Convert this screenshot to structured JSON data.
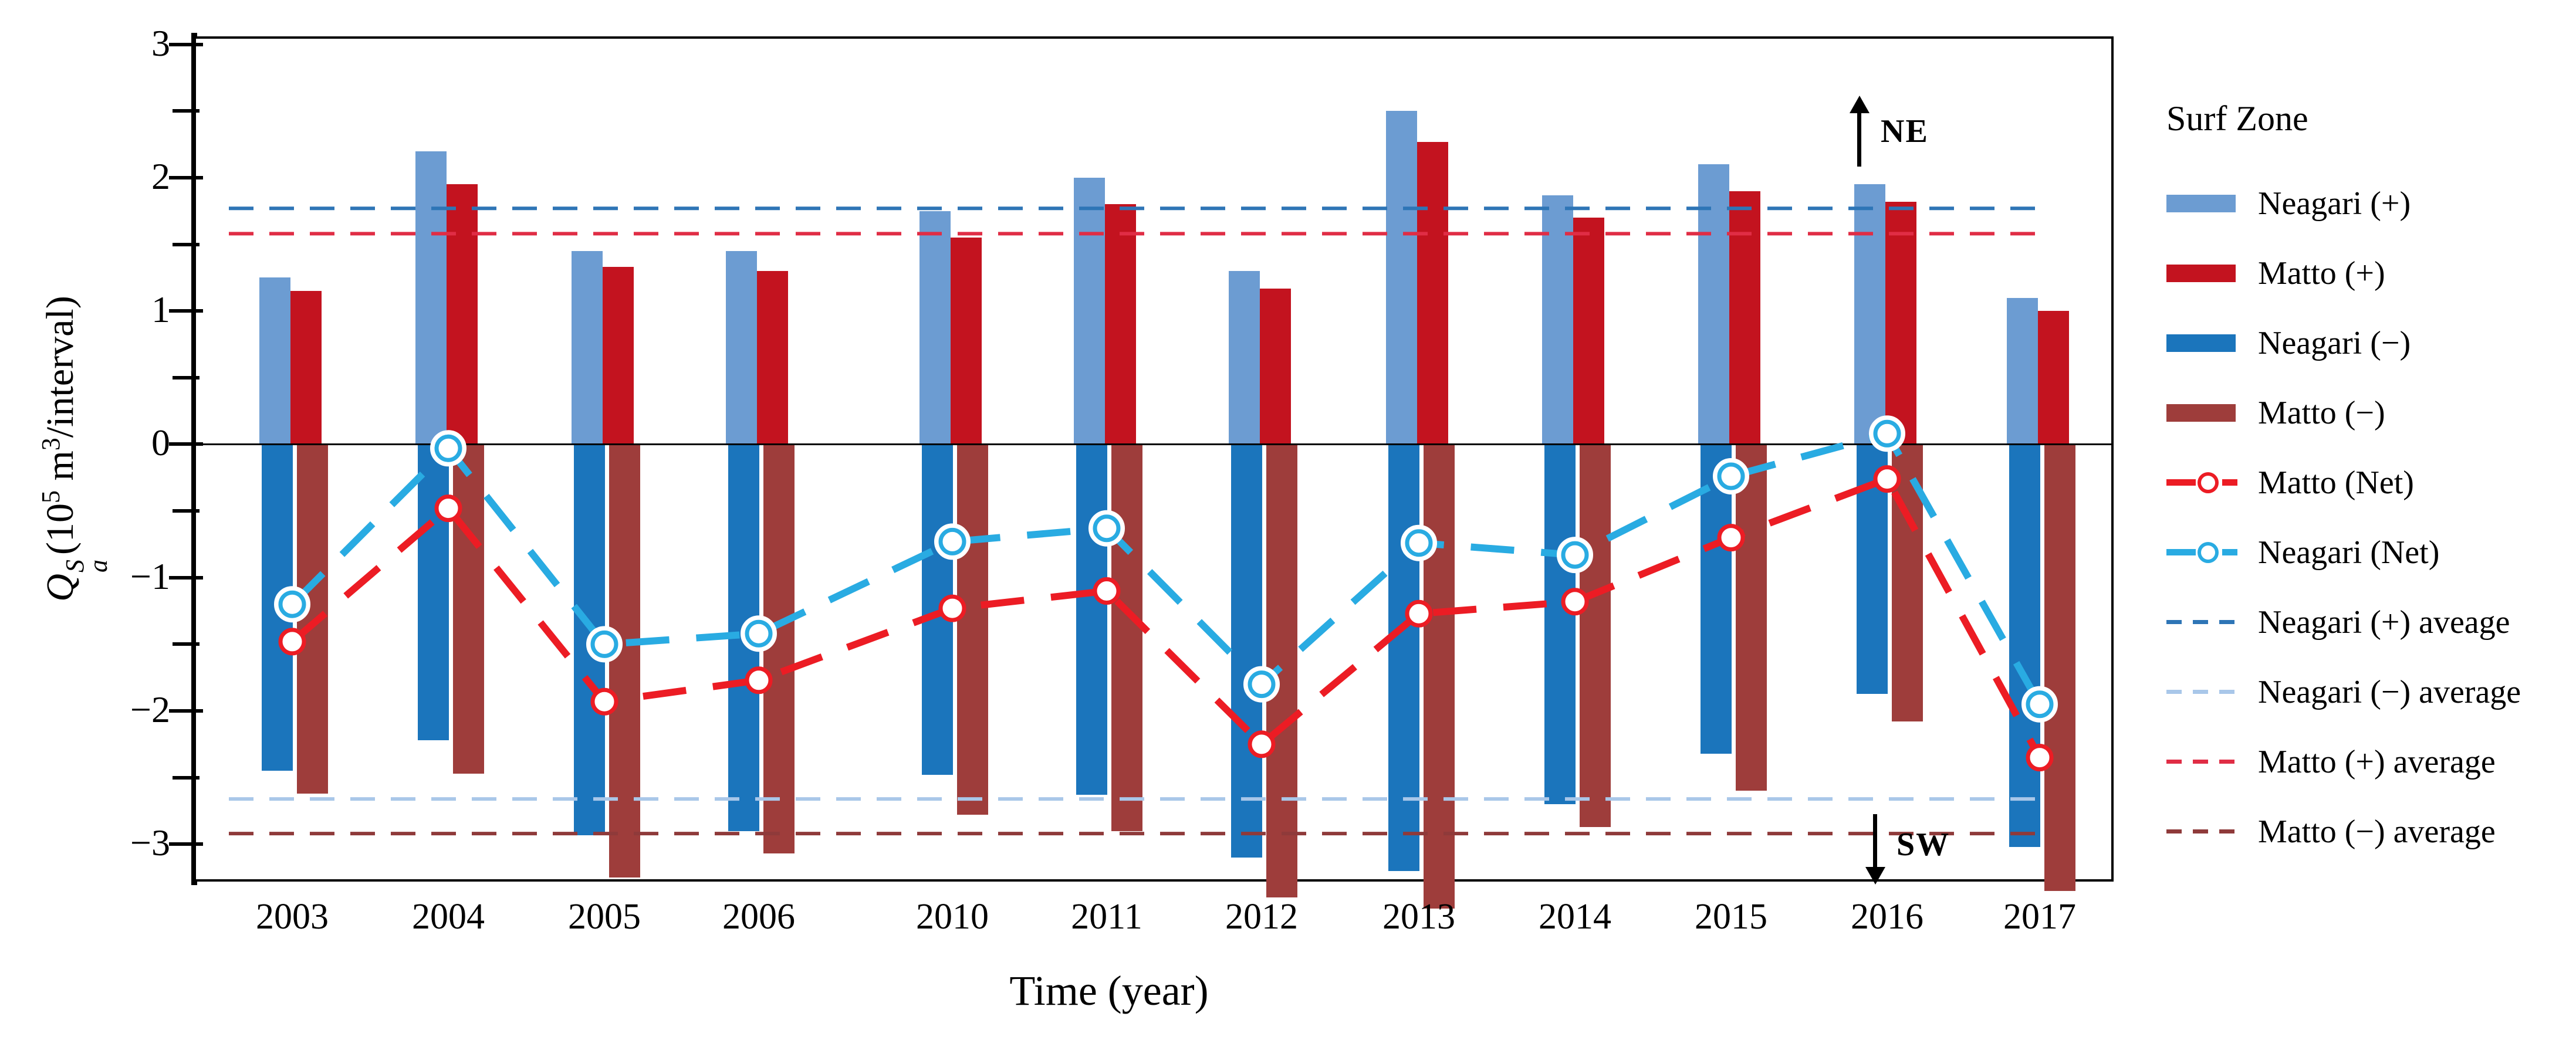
{
  "x_axis": {
    "title": "Time (year)"
  },
  "y_axis": {
    "title_q": "Q",
    "title_sup": "S",
    "title_sub": "a",
    "title_unit_open": "(10",
    "title_unit_exp1": "5",
    "title_unit_m": " m",
    "title_unit_exp2": "3",
    "title_unit_close": "/interval)",
    "tick_labels": [
      "3",
      "2",
      "1",
      "0",
      "−1",
      "−2",
      "−3"
    ],
    "tick_values": [
      3,
      2,
      1,
      0,
      -1,
      -2,
      -3
    ]
  },
  "annotations": {
    "up": "NE",
    "down": "SW"
  },
  "colors": {
    "neagari_plus": "#6C9CD2",
    "matto_plus": "#C3131F",
    "neagari_minus": "#1B75BC",
    "matto_minus": "#9E3D3B",
    "matto_net": "#EC1C24",
    "neagari_net": "#29ABE2",
    "neagari_plus_avg": "#2E75B6",
    "neagari_minus_avg": "#A9C7E9",
    "matto_plus_avg": "#E02D45",
    "matto_minus_avg": "#8F3A3A",
    "axis": "#000000"
  },
  "legend": {
    "title": "Surf Zone",
    "items": [
      {
        "label": "Neagari (+)",
        "swatch": "bar",
        "color": "neagari_plus"
      },
      {
        "label": "Matto (+)",
        "swatch": "bar",
        "color": "matto_plus"
      },
      {
        "label": "Neagari (−)",
        "swatch": "bar",
        "color": "neagari_minus"
      },
      {
        "label": "Matto (−)",
        "swatch": "bar",
        "color": "matto_minus"
      },
      {
        "label": "Matto (Net)",
        "swatch": "net",
        "color": "matto_net"
      },
      {
        "label": "Neagari (Net)",
        "swatch": "net",
        "color": "neagari_net"
      },
      {
        "label": "Neagari (+) aveage",
        "swatch": "dash",
        "color": "neagari_plus_avg"
      },
      {
        "label": "Neagari (−) average",
        "swatch": "dash",
        "color": "neagari_minus_avg"
      },
      {
        "label": "Matto  (+) average",
        "swatch": "dash",
        "color": "matto_plus_avg"
      },
      {
        "label": "Matto  (−) average",
        "swatch": "dash",
        "color": "matto_minus_avg"
      }
    ]
  },
  "chart_data": {
    "type": "bar",
    "title": "",
    "xlabel": "Time (year)",
    "ylabel": "Qa^S (10^5 m^3/interval)",
    "ylim": [
      -3.28,
      3.06
    ],
    "grid": false,
    "legend_position": "right",
    "categories": [
      "2003",
      "2004",
      "2005",
      "2006",
      "2010",
      "2011",
      "2012",
      "2013",
      "2014",
      "2015",
      "2016",
      "2017"
    ],
    "series": [
      {
        "name": "Neagari (+)",
        "plot": "bar",
        "color_key": "neagari_plus",
        "values": [
          1.25,
          2.2,
          1.45,
          1.45,
          1.75,
          2.0,
          1.3,
          2.5,
          1.87,
          2.1,
          1.95,
          1.1
        ]
      },
      {
        "name": "Matto (+)",
        "plot": "bar",
        "color_key": "matto_plus",
        "values": [
          1.15,
          1.95,
          1.33,
          1.3,
          1.55,
          1.8,
          1.17,
          2.27,
          1.7,
          1.9,
          1.82,
          1.0
        ]
      },
      {
        "name": "Neagari (−)",
        "plot": "bar",
        "color_key": "neagari_minus",
        "values": [
          -2.45,
          -2.22,
          -2.93,
          -2.9,
          -2.48,
          -2.63,
          -3.1,
          -3.2,
          -2.7,
          -2.32,
          -1.87,
          -3.02
        ]
      },
      {
        "name": "Matto (−)",
        "plot": "bar",
        "color_key": "matto_minus",
        "values": [
          -2.62,
          -2.47,
          -3.25,
          -3.07,
          -2.78,
          -2.9,
          -3.4,
          -3.48,
          -2.87,
          -2.6,
          -2.08,
          -3.35
        ]
      },
      {
        "name": "Matto (Net)",
        "plot": "line",
        "color_key": "matto_net",
        "values": [
          -1.48,
          -0.48,
          -1.93,
          -1.77,
          -1.23,
          -1.1,
          -2.25,
          -1.27,
          -1.18,
          -0.7,
          -0.26,
          -2.35
        ]
      },
      {
        "name": "Neagari (Net)",
        "plot": "line",
        "color_key": "neagari_net",
        "values": [
          -1.2,
          -0.03,
          -1.5,
          -1.42,
          -0.73,
          -0.63,
          -1.8,
          -0.74,
          -0.83,
          -0.24,
          0.08,
          -1.95
        ]
      }
    ],
    "reference_lines": [
      {
        "name": "Neagari (+) aveage",
        "value": 1.77,
        "color_key": "neagari_plus_avg"
      },
      {
        "name": "Matto (+) average",
        "value": 1.58,
        "color_key": "matto_plus_avg"
      },
      {
        "name": "Neagari (−) average",
        "value": -2.66,
        "color_key": "neagari_minus_avg"
      },
      {
        "name": "Matto (−) average",
        "value": -2.92,
        "color_key": "matto_minus_avg"
      }
    ]
  }
}
